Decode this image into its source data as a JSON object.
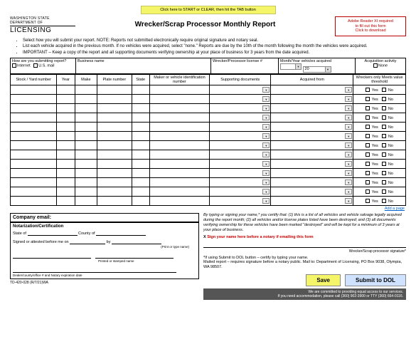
{
  "header": {
    "agency_line1": "WASHINGTON STATE DEPARTMENT OF",
    "agency_line2": "LICENSING",
    "hint": "Click here to START or CLEAR, then hit the TAB button",
    "title": "Wrecker/Scrap Processor Monthly Report",
    "reader_l1": "Adobe Reader XI required",
    "reader_l2": "to fill out this form",
    "reader_l3": "Click to download"
  },
  "notes": [
    "Select how you will submit your report. NOTE: Reports not submitted electronically require original signature and notary seal.",
    "List each vehicle acquired in the previous month. If no vehicles were acquired, select \"none.\" Reports are due by the 10th of the month following the month the vehicles were acquired.",
    "IMPORTANT – Keep a copy of the report and all supporting documents verifying ownership at your place of business for 3 years from the date acquired."
  ],
  "row1": {
    "submit_label": "How are you submitting report?",
    "internet": "Internet",
    "usmail": "U.S. mail",
    "biz_label": "Business name",
    "lic_label": "Wrecker/Processor license #",
    "month_label": "Month/Year vehicles acquired",
    "month_value": "20",
    "acq_label": "Acquisition activity",
    "none": "None"
  },
  "cols": {
    "stock": "Stock / Yard number",
    "year": "Year",
    "make": "Make",
    "plate": "Plate number",
    "state": "State",
    "ident": "Maker or vehicle\nidentification number",
    "docs": "Supporting documents",
    "from": "Acquired from",
    "thresh": "Wreckers only\nMeets value threshold"
  },
  "rows_count": 13,
  "yes": "Yes",
  "no": "No",
  "addpage": "Add a page",
  "lower": {
    "email": "Company email:",
    "notary_hd": "Notarization/Certification",
    "state": "State of",
    "county": "County of",
    "sworn": "Signed or attested before me on",
    "by": "by",
    "name_hint": "(Print or type name)",
    "stamp": "Printed or stamped name",
    "exp": "Dealer/county/office # and Notary expiration date",
    "cert": "By typing or signing your name,* you certify that: (1) this is a list of all vehicles and vehicle salvage legally acquired during the report month; (2) all vehicles and/or license plates listed have been destroyed; and (3) all documents verifying ownership for these vehicles have been marked \"destroyed\" and will be kept for a minimum of 3 years at your place of business.",
    "sign_red": "Sign your name here before a notary if emailing this form",
    "sig_cap": "Wrecker/Scrap processor signature*",
    "mail": "*If using Submit to DOL button – certify by typing your name.\nMailed report – requires signature before a notary public.  Mail to: Department of Licensing, PO Box 9038, Olympia, WA  98507."
  },
  "buttons": {
    "save": "Save",
    "submit": "Submit to DOL"
  },
  "footer": {
    "form": "TD-420-028 (R/7/21)WA",
    "l1": "We are committed to providing equal access to our services.",
    "l2": "If you need accommodation, please call (360) 902-3900 or TTY (360) 664-0116."
  }
}
